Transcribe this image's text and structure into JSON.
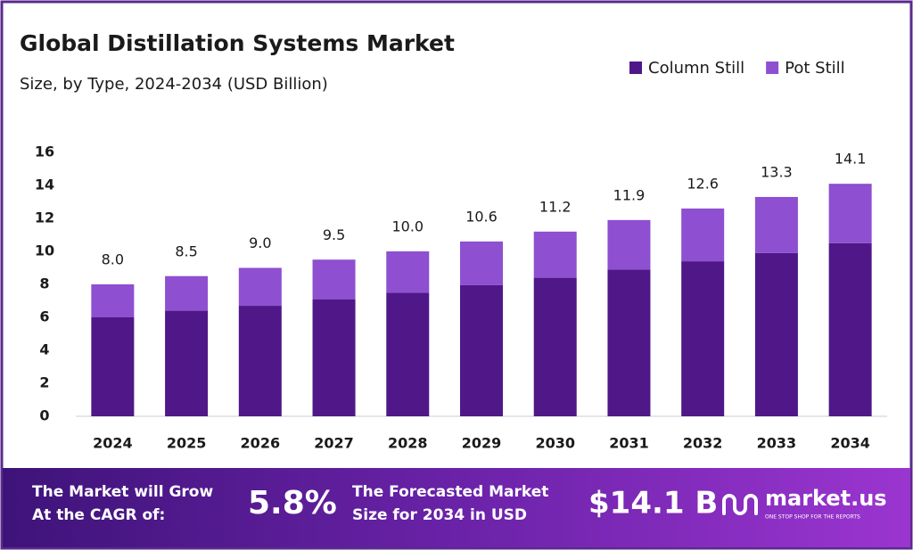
{
  "chart_data": {
    "type": "stacked_bar",
    "title": "Global Distillation Systems Market",
    "subtitle": "Size, by Type, 2024-2034 (USD Billion)",
    "categories": [
      "2024",
      "2025",
      "2026",
      "2027",
      "2028",
      "2029",
      "2030",
      "2031",
      "2032",
      "2033",
      "2034"
    ],
    "series": [
      {
        "name": "Column Still",
        "color": "#4f1787",
        "values": [
          6.0,
          6.4,
          6.7,
          7.1,
          7.5,
          7.95,
          8.4,
          8.9,
          9.4,
          9.9,
          10.5
        ]
      },
      {
        "name": "Pot Still",
        "color": "#8e4fd0",
        "values": [
          2.0,
          2.1,
          2.3,
          2.4,
          2.5,
          2.65,
          2.8,
          3.0,
          3.2,
          3.4,
          3.6
        ]
      }
    ],
    "totals": {
      "values": [
        8.0,
        8.5,
        9.0,
        9.5,
        10.0,
        10.6,
        11.2,
        11.9,
        12.6,
        13.3,
        14.1
      ],
      "value_labels": [
        "8.0",
        "8.5",
        "9.0",
        "9.5",
        "10.0",
        "10.6",
        "11.2",
        "11.9",
        "12.6",
        "13.3",
        "14.1"
      ]
    },
    "ylim": [
      0,
      16
    ],
    "yticks": [
      0,
      2,
      4,
      6,
      8,
      10,
      12,
      14,
      16
    ],
    "grid": false,
    "legend": "top-right"
  },
  "footer": {
    "cagr_text": [
      "The Market will Grow",
      "At the CAGR of:"
    ],
    "cagr": "5.8%",
    "forecast_text": [
      "The Forecasted Market",
      "Size for 2034 in USD"
    ],
    "forecast": "$14.1 B",
    "brand": "market.us",
    "tagline": "ONE STOP SHOP FOR THE REPORTS"
  }
}
